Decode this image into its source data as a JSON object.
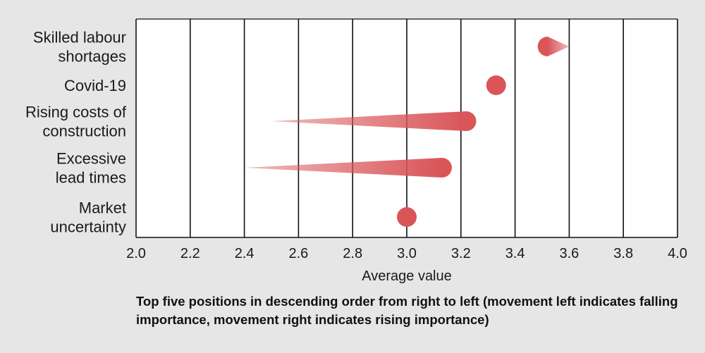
{
  "chart_data": {
    "type": "scatter",
    "subtype": "arrow-dot",
    "xlabel": "Average value",
    "xlim": [
      2.0,
      4.0
    ],
    "xticks": [
      "2.0",
      "2.2",
      "2.4",
      "2.6",
      "2.8",
      "3.0",
      "3.2",
      "3.4",
      "3.6",
      "3.8",
      "4.0"
    ],
    "grid": true,
    "color": "#d95558",
    "categories": [
      {
        "lines": [
          "Skilled labour",
          "shortages"
        ],
        "from": 3.6,
        "to": 3.52
      },
      {
        "lines": [
          "Covid-19"
        ],
        "from": 3.33,
        "to": 3.33
      },
      {
        "lines": [
          "Rising costs of",
          "construction"
        ],
        "from": 2.5,
        "to": 3.22
      },
      {
        "lines": [
          "Excessive",
          "lead times"
        ],
        "from": 2.4,
        "to": 3.13
      },
      {
        "lines": [
          "Market",
          "uncertainty"
        ],
        "from": 3.0,
        "to": 3.0
      }
    ]
  },
  "caption": "Top five positions in descending order from right to left (movement left indicates falling importance, movement right indicates rising importance)"
}
